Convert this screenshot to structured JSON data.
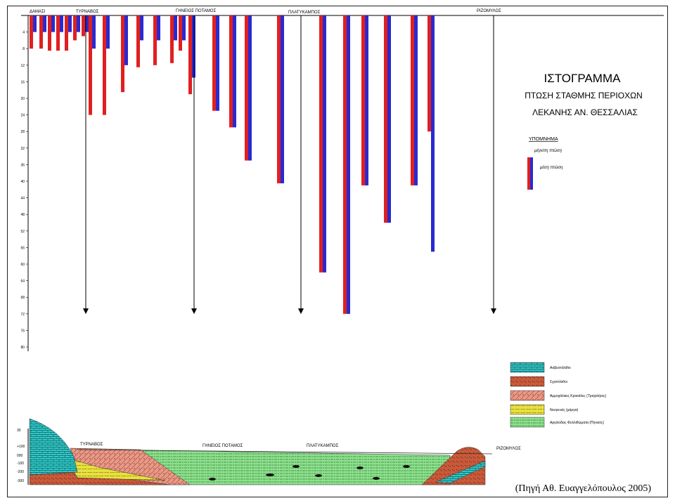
{
  "chart_data": {
    "type": "bar",
    "title": "ΙΣΤΟΓΡΑΜΜΑ",
    "subtitle_lines": [
      "ΠΤΩΣΗ ΣΤΑΘΜΗΣ ΠΕΡΙΟΧΩΝ",
      "ΛΕΚΑΝΗΣ ΑΝ. ΘΕΣΣΑΛΙΑΣ"
    ],
    "y_ticks": [
      "4",
      "8",
      "12",
      "16",
      "20",
      "24",
      "28",
      "32",
      "36",
      "40",
      "44",
      "48",
      "52",
      "56",
      "60",
      "64",
      "68",
      "72",
      "76",
      "80"
    ],
    "ylim": [
      0,
      80
    ],
    "y_inverted": true,
    "locations": [
      "ΔΑΜΑΣΙ",
      "ΤΥΡΝΑΒΟΣ",
      "ΓΗΝΕΙΟΣ ΠΟΤΑΜΟΣ",
      "ΠΛΑΤΥΚΑΜΠΟΣ",
      "ΡΙΖΟΜΥΛΟΣ"
    ],
    "legend": {
      "title": "ΥΠΟΜΝΗΜΑ",
      "max_label": "μέγιστη πτώση",
      "avg_label": "μέση πτώση",
      "max_color": "#e02020",
      "avg_color": "#2a2ad0"
    },
    "series": [
      {
        "name": "μέγιστη πτώση",
        "color": "#e02020",
        "values": [
          8,
          8,
          8.5,
          8.5,
          8.5,
          6,
          5,
          24,
          24,
          18.5,
          12.5,
          12,
          11.5,
          8.5,
          19,
          23,
          27,
          35,
          40.5,
          62,
          72,
          41,
          50,
          41,
          28
        ]
      },
      {
        "name": "μέση πτώση",
        "color": "#2a2ad0",
        "values": [
          4,
          4,
          4,
          4,
          4,
          4,
          4,
          8,
          8,
          12,
          6,
          6,
          6,
          6,
          15,
          23,
          27,
          35,
          40.5,
          62,
          72,
          41,
          50,
          41,
          57
        ]
      }
    ]
  },
  "cross_section": {
    "depth_ticks": [
      "30",
      "+100",
      "000",
      "-100",
      "-200",
      "-300"
    ],
    "locations": [
      "ΤΥΡΝΑΒΟΣ",
      "ΓΗΝΕΙΟΣ ΠΟΤΑΜΟΣ",
      "ΠΛΑΤΥΚΑΜΠΟΣ",
      "ΡΙΖΟΜΥΛΟΣ"
    ],
    "legend": [
      {
        "label": "Ασβεστόλιθοι",
        "color": "#30c8c8"
      },
      {
        "label": "Σχιστόλιθοι",
        "color": "#c85a3a"
      },
      {
        "label": "Αμμοχάλικες Κροκάλες (Τραχιά/ρος)",
        "color": "#e89a88"
      },
      {
        "label": "Νεογενείς (μάργα)",
        "color": "#e8e040"
      },
      {
        "label": "Αργιλοδεις Φυλλιθώματα (Πηνειός)",
        "color": "#8ee08e"
      }
    ]
  },
  "caption": "(Πηγή Αθ. Ευαγγελόπουλος 2005)"
}
